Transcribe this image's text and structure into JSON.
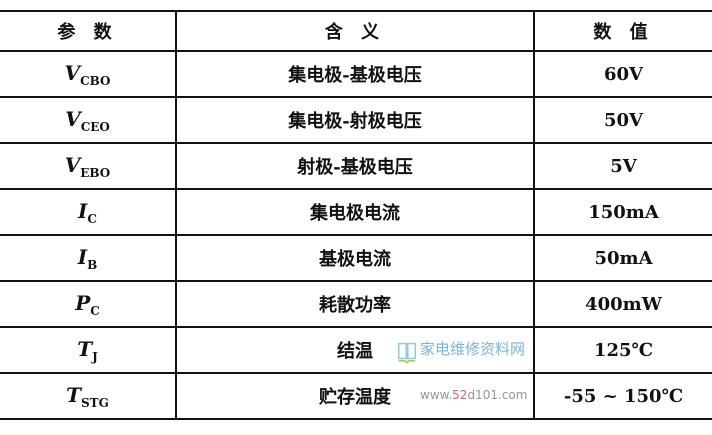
{
  "table": {
    "headers": [
      "参  数",
      "含  义",
      "数  值"
    ],
    "rows": [
      {
        "symbol": "V",
        "sub": "CBO",
        "meaning": "集电极-基极电压",
        "value": "60V"
      },
      {
        "symbol": "V",
        "sub": "CEO",
        "meaning": "集电极-射极电压",
        "value": "50V"
      },
      {
        "symbol": "V",
        "sub": "EBO",
        "meaning": "射极-基极电压",
        "value": "5V"
      },
      {
        "symbol": "I",
        "sub": "C",
        "meaning": "集电极电流",
        "value": "150mA"
      },
      {
        "symbol": "I",
        "sub": "B",
        "meaning": "基极电流",
        "value": "50mA"
      },
      {
        "symbol": "P",
        "sub": "C",
        "meaning": "耗散功率",
        "value": "400mW"
      },
      {
        "symbol": "T",
        "sub": "J",
        "meaning": "结温",
        "value": "125℃"
      },
      {
        "symbol": "T",
        "sub": "STG",
        "meaning": "贮存温度",
        "value": "-55 ~ 150℃"
      }
    ]
  },
  "watermark": {
    "name": "家电维修资料网",
    "url_a": "www.",
    "url_b": "52",
    "url_c": "d101.com"
  }
}
